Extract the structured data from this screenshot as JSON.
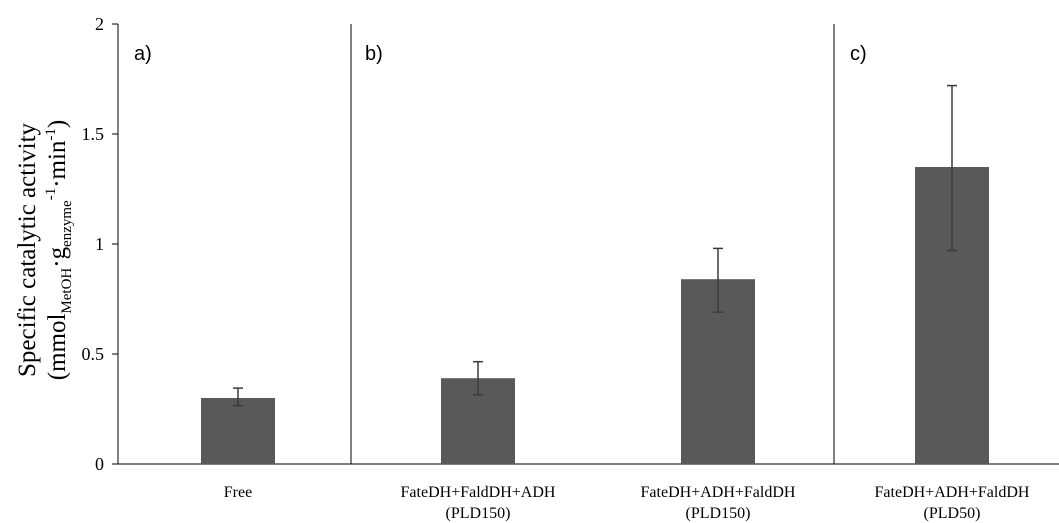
{
  "chart_data": {
    "type": "bar",
    "ylabel": {
      "line1": "Specific catalytic activity",
      "line2_prefix": "(mmol",
      "line2_sub1": "MetOH",
      "line2_mid": "·g",
      "line2_sub2": "enzyme",
      "line2_sup1": "-1",
      "line2_mid2": "·min",
      "line2_sup2": "-1",
      "line2_suffix": ")"
    },
    "ylim": [
      0,
      2
    ],
    "yticks": [
      "0",
      "0.5",
      "1",
      "1.5",
      "2"
    ],
    "ytick_values": [
      0,
      0.5,
      1,
      1.5,
      2
    ],
    "panels": [
      "a)",
      "b)",
      "c)"
    ],
    "categories": [
      {
        "line1": "Free",
        "line2": ""
      },
      {
        "line1": "FateDH+FaldDH+ADH",
        "line2": "(PLD150)"
      },
      {
        "line1": "FateDH+ADH+FaldDH",
        "line2": "(PLD150)"
      },
      {
        "line1": "FateDH+ADH+FaldDH",
        "line2": "(PLD50)"
      }
    ],
    "values": [
      0.3,
      0.39,
      0.84,
      1.35
    ],
    "error_low": [
      0.265,
      0.315,
      0.69,
      0.97
    ],
    "error_high": [
      0.345,
      0.465,
      0.98,
      1.72
    ],
    "bar_color": "#595959",
    "grid": false
  }
}
